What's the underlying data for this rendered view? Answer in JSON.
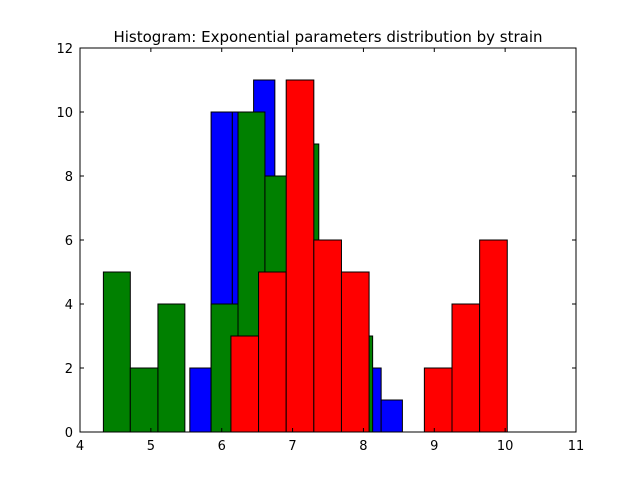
{
  "chart_data": {
    "type": "bar",
    "title": "Histogram: Exponential parameters distribution by strain",
    "xlabel": "",
    "ylabel": "",
    "xlim": [
      4,
      11
    ],
    "ylim": [
      0,
      12
    ],
    "xticks": [
      "4",
      "5",
      "6",
      "7",
      "8",
      "9",
      "10",
      "11"
    ],
    "yticks": [
      "0",
      "2",
      "4",
      "6",
      "8",
      "10",
      "12"
    ],
    "grid": false,
    "legend": "none",
    "series": [
      {
        "color": "#0000ff",
        "bars": [
          {
            "x0": 5.55,
            "x1": 5.85,
            "value": 2
          },
          {
            "x0": 5.85,
            "x1": 6.15,
            "value": 10
          },
          {
            "x0": 6.15,
            "x1": 6.45,
            "value": 10
          },
          {
            "x0": 6.45,
            "x1": 6.75,
            "value": 11
          },
          {
            "x0": 6.75,
            "x1": 7.05,
            "value": 6
          },
          {
            "x0": 7.05,
            "x1": 7.35,
            "value": 4
          },
          {
            "x0": 7.35,
            "x1": 7.65,
            "value": 3
          },
          {
            "x0": 7.65,
            "x1": 7.95,
            "value": 3
          },
          {
            "x0": 7.95,
            "x1": 8.25,
            "value": 2
          },
          {
            "x0": 8.25,
            "x1": 8.55,
            "value": 1
          }
        ]
      },
      {
        "color": "#008000",
        "bars": [
          {
            "x0": 4.33,
            "x1": 4.71,
            "value": 5
          },
          {
            "x0": 4.71,
            "x1": 5.1,
            "value": 2
          },
          {
            "x0": 5.1,
            "x1": 5.48,
            "value": 4
          },
          {
            "x0": 5.85,
            "x1": 6.23,
            "value": 4
          },
          {
            "x0": 6.23,
            "x1": 6.61,
            "value": 10
          },
          {
            "x0": 6.61,
            "x1": 6.99,
            "value": 8
          },
          {
            "x0": 6.99,
            "x1": 7.37,
            "value": 9
          },
          {
            "x0": 7.75,
            "x1": 8.13,
            "value": 3
          }
        ]
      },
      {
        "color": "#ff0000",
        "bars": [
          {
            "x0": 6.13,
            "x1": 6.52,
            "value": 3
          },
          {
            "x0": 6.52,
            "x1": 6.91,
            "value": 5
          },
          {
            "x0": 6.91,
            "x1": 7.3,
            "value": 11
          },
          {
            "x0": 7.3,
            "x1": 7.69,
            "value": 6
          },
          {
            "x0": 7.69,
            "x1": 8.08,
            "value": 5
          },
          {
            "x0": 8.86,
            "x1": 9.25,
            "value": 2
          },
          {
            "x0": 9.25,
            "x1": 9.64,
            "value": 4
          },
          {
            "x0": 9.64,
            "x1": 10.03,
            "value": 6
          }
        ]
      }
    ]
  }
}
